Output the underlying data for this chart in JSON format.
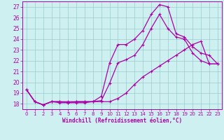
{
  "xlabel": "Windchill (Refroidissement éolien,°C)",
  "background_color": "#cef0f0",
  "line_color": "#aa00aa",
  "grid_color": "#99cccc",
  "xlim": [
    -0.5,
    23.5
  ],
  "ylim": [
    17.5,
    27.5
  ],
  "xticks": [
    0,
    1,
    2,
    3,
    4,
    5,
    6,
    7,
    8,
    9,
    10,
    11,
    12,
    13,
    14,
    15,
    16,
    17,
    18,
    19,
    20,
    21,
    22,
    23
  ],
  "yticks": [
    18,
    19,
    20,
    21,
    22,
    23,
    24,
    25,
    26,
    27
  ],
  "line1_x": [
    0,
    1,
    2,
    3,
    4,
    5,
    6,
    7,
    8,
    9,
    10,
    11,
    12,
    13,
    14,
    15,
    16,
    17,
    18,
    19,
    20,
    21,
    22,
    23
  ],
  "line1_y": [
    19.3,
    18.2,
    17.9,
    18.2,
    18.1,
    18.1,
    18.1,
    18.1,
    18.2,
    18.7,
    21.8,
    23.5,
    23.5,
    24.0,
    24.8,
    26.3,
    27.2,
    27.0,
    24.5,
    24.2,
    23.3,
    22.7,
    22.5,
    21.7
  ],
  "line2_x": [
    0,
    1,
    2,
    3,
    4,
    5,
    6,
    7,
    8,
    9,
    10,
    11,
    12,
    13,
    14,
    15,
    16,
    17,
    18,
    19,
    20,
    21,
    22,
    23
  ],
  "line2_y": [
    19.3,
    18.2,
    17.9,
    18.2,
    18.2,
    18.1,
    18.2,
    18.2,
    18.2,
    18.3,
    19.9,
    21.8,
    22.1,
    22.5,
    23.5,
    25.0,
    26.3,
    25.0,
    24.2,
    24.0,
    22.7,
    22.0,
    21.7,
    21.7
  ],
  "line3_x": [
    0,
    1,
    2,
    3,
    4,
    5,
    6,
    7,
    8,
    9,
    10,
    11,
    12,
    13,
    14,
    15,
    16,
    17,
    18,
    19,
    20,
    21,
    22,
    23
  ],
  "line3_y": [
    19.3,
    18.2,
    17.9,
    18.2,
    18.2,
    18.2,
    18.2,
    18.2,
    18.2,
    18.2,
    18.2,
    18.5,
    19.0,
    19.8,
    20.5,
    21.0,
    21.5,
    22.0,
    22.5,
    23.0,
    23.5,
    23.8,
    21.7,
    21.7
  ]
}
